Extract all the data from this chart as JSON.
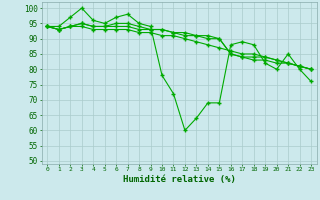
{
  "title": "",
  "xlabel": "Humidité relative (%)",
  "ylabel": "",
  "background_color": "#cce9ec",
  "grid_color": "#aacccc",
  "line_color": "#00aa00",
  "xlim": [
    -0.5,
    23.5
  ],
  "ylim": [
    49,
    102
  ],
  "yticks": [
    50,
    55,
    60,
    65,
    70,
    75,
    80,
    85,
    90,
    95,
    100
  ],
  "xticks": [
    0,
    1,
    2,
    3,
    4,
    5,
    6,
    7,
    8,
    9,
    10,
    11,
    12,
    13,
    14,
    15,
    16,
    17,
    18,
    19,
    20,
    21,
    22,
    23
  ],
  "series": [
    [
      94,
      94,
      97,
      100,
      96,
      95,
      97,
      98,
      95,
      94,
      78,
      72,
      60,
      64,
      69,
      69,
      88,
      89,
      88,
      82,
      80,
      85,
      80,
      76
    ],
    [
      94,
      93,
      94,
      94,
      93,
      93,
      93,
      93,
      92,
      92,
      91,
      91,
      90,
      89,
      88,
      87,
      86,
      85,
      85,
      84,
      83,
      82,
      81,
      80
    ],
    [
      94,
      93,
      94,
      95,
      94,
      94,
      94,
      94,
      93,
      93,
      93,
      92,
      91,
      91,
      90,
      90,
      85,
      84,
      83,
      83,
      82,
      82,
      81,
      80
    ],
    [
      94,
      93,
      94,
      95,
      94,
      94,
      95,
      95,
      94,
      93,
      93,
      92,
      92,
      91,
      91,
      90,
      85,
      84,
      84,
      84,
      83,
      82,
      81,
      80
    ]
  ]
}
